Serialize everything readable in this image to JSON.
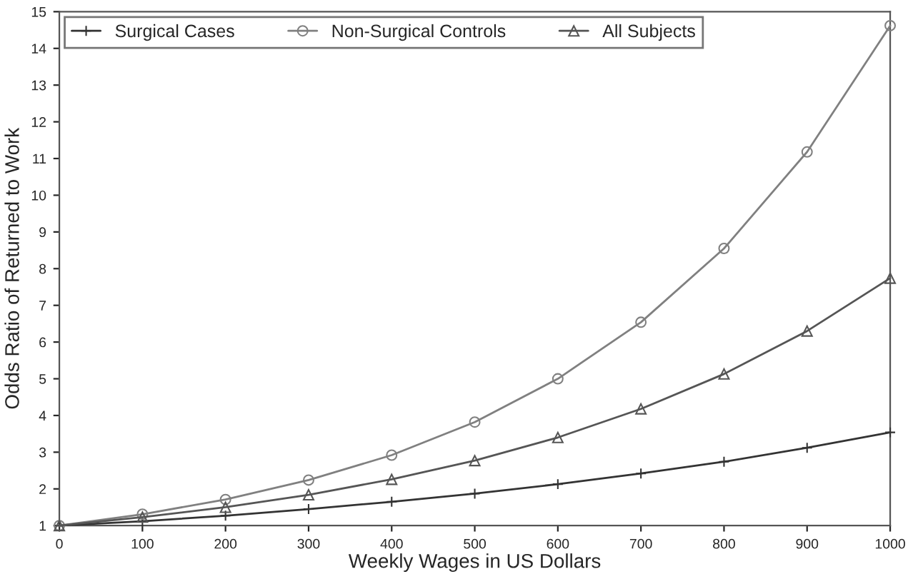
{
  "chart_data": {
    "type": "line",
    "xlabel": "Weekly Wages in US Dollars",
    "ylabel": "Odds Ratio of Returned to Work",
    "x": [
      0,
      100,
      200,
      300,
      400,
      500,
      600,
      700,
      800,
      900,
      1000
    ],
    "series": [
      {
        "name": "Surgical Cases",
        "color": "#333333",
        "marker": "cross",
        "values": [
          1,
          1.12,
          1.27,
          1.45,
          1.65,
          1.87,
          2.13,
          2.42,
          2.74,
          3.12,
          3.54
        ]
      },
      {
        "name": "Non-Surgical Controls",
        "color": "#808080",
        "marker": "circle",
        "values": [
          1,
          1.31,
          1.71,
          2.24,
          2.92,
          3.82,
          5.0,
          6.54,
          8.55,
          11.18,
          14.62
        ]
      },
      {
        "name": "All Subjects",
        "color": "#555555",
        "marker": "triangle",
        "values": [
          1,
          1.23,
          1.5,
          1.84,
          2.26,
          2.77,
          3.4,
          4.18,
          5.13,
          6.3,
          7.74
        ]
      }
    ],
    "xlim": [
      0,
      1000
    ],
    "xticks": [
      0,
      100,
      200,
      300,
      400,
      500,
      600,
      700,
      800,
      900,
      1000
    ],
    "ylim": [
      1,
      15
    ],
    "yticks": [
      1,
      2,
      3,
      4,
      5,
      6,
      7,
      8,
      9,
      10,
      11,
      12,
      13,
      14,
      15
    ],
    "grid": false,
    "legend": "top left"
  }
}
